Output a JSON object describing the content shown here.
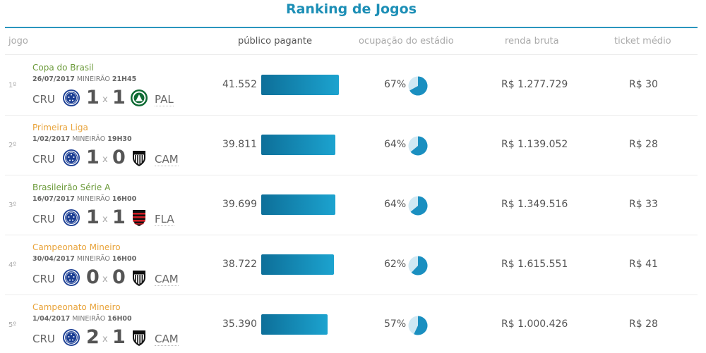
{
  "title": "Ranking de Jogos",
  "headers": {
    "jogo": "jogo",
    "publico": "público pagante",
    "ocupacao": "ocupação do estádio",
    "renda": "renda bruta",
    "ticket": "ticket médio"
  },
  "colors": {
    "accent": "#1d8fb6",
    "bar_start": "#0d6f99",
    "bar_end": "#1ca3cf",
    "pie_fill": "#1a8fc0",
    "pie_bg": "#cfe8f3",
    "competition_green": "#6b9a3a",
    "competition_orange": "#e8a33a"
  },
  "public_scale_max": 41552,
  "rows": [
    {
      "rank": "1º",
      "competition": "Copa do Brasil",
      "competition_color": "#6b9a3a",
      "date": "26/07/2017",
      "venue": "MINEIRÃO",
      "time": "21H45",
      "home_team": "CRU",
      "home_score": "1",
      "separator": "x",
      "away_score": "1",
      "away_team": "PAL",
      "home_crest": "cruzeiro-crest-icon",
      "away_crest": "palmeiras-crest-icon",
      "publico_text": "41.552",
      "publico_value": 41552,
      "ocupacao_text": "67%",
      "ocupacao_value": 0.67,
      "renda": "R$ 1.277.729",
      "ticket": "R$ 30"
    },
    {
      "rank": "2º",
      "competition": "Primeira Liga",
      "competition_color": "#e8a33a",
      "date": "1/02/2017",
      "venue": "MINEIRÃO",
      "time": "19H30",
      "home_team": "CRU",
      "home_score": "1",
      "separator": "x",
      "away_score": "0",
      "away_team": "CAM",
      "home_crest": "cruzeiro-crest-icon",
      "away_crest": "atletico-mineiro-crest-icon",
      "publico_text": "39.811",
      "publico_value": 39811,
      "ocupacao_text": "64%",
      "ocupacao_value": 0.64,
      "renda": "R$ 1.139.052",
      "ticket": "R$ 28"
    },
    {
      "rank": "3º",
      "competition": "Brasileirão Série A",
      "competition_color": "#6b9a3a",
      "date": "16/07/2017",
      "venue": "MINEIRÃO",
      "time": "16H00",
      "home_team": "CRU",
      "home_score": "1",
      "separator": "x",
      "away_score": "1",
      "away_team": "FLA",
      "home_crest": "cruzeiro-crest-icon",
      "away_crest": "flamengo-crest-icon",
      "publico_text": "39.699",
      "publico_value": 39699,
      "ocupacao_text": "64%",
      "ocupacao_value": 0.64,
      "renda": "R$ 1.349.516",
      "ticket": "R$ 33"
    },
    {
      "rank": "4º",
      "competition": "Campeonato Mineiro",
      "competition_color": "#e8a33a",
      "date": "30/04/2017",
      "venue": "MINEIRÃO",
      "time": "16H00",
      "home_team": "CRU",
      "home_score": "0",
      "separator": "x",
      "away_score": "0",
      "away_team": "CAM",
      "home_crest": "cruzeiro-crest-icon",
      "away_crest": "atletico-mineiro-crest-icon",
      "publico_text": "38.722",
      "publico_value": 38722,
      "ocupacao_text": "62%",
      "ocupacao_value": 0.62,
      "renda": "R$ 1.615.551",
      "ticket": "R$ 41"
    },
    {
      "rank": "5º",
      "competition": "Campeonato Mineiro",
      "competition_color": "#e8a33a",
      "date": "1/04/2017",
      "venue": "MINEIRÃO",
      "time": "16H00",
      "home_team": "CRU",
      "home_score": "2",
      "separator": "x",
      "away_score": "1",
      "away_team": "CAM",
      "home_crest": "cruzeiro-crest-icon",
      "away_crest": "atletico-mineiro-crest-icon",
      "publico_text": "35.390",
      "publico_value": 35390,
      "ocupacao_text": "57%",
      "ocupacao_value": 0.57,
      "renda": "R$ 1.000.426",
      "ticket": "R$ 28"
    }
  ]
}
